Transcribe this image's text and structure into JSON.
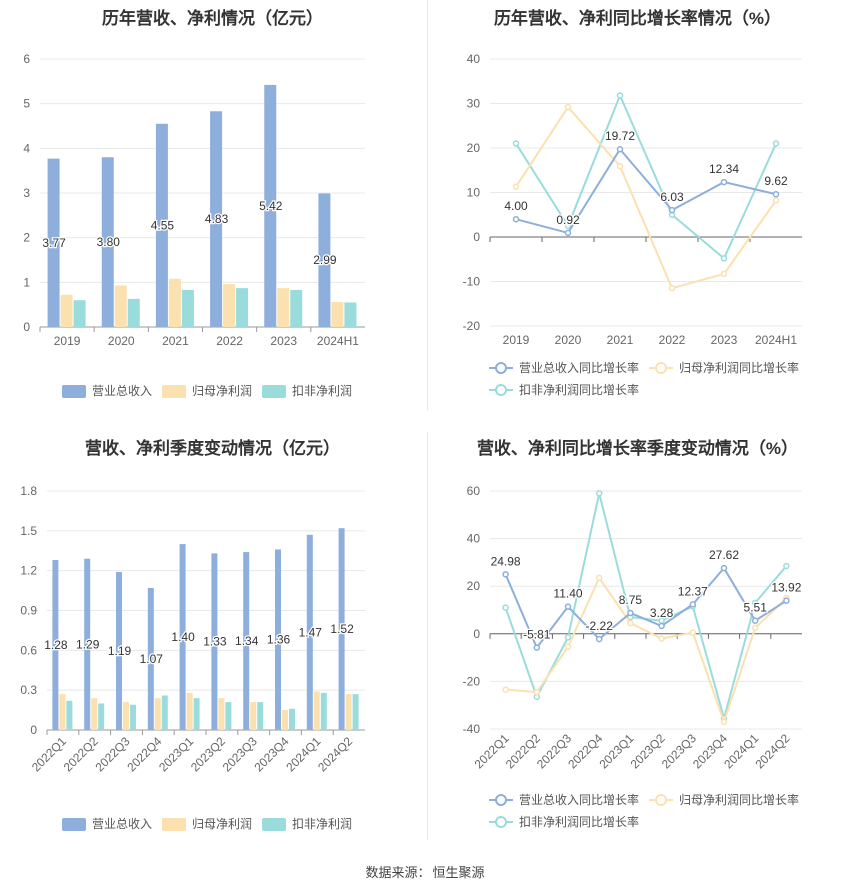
{
  "source": {
    "label": "数据来源：",
    "value": "恒生聚源"
  },
  "chart_data": [
    {
      "id": "annual-revenue-profit",
      "type": "bar",
      "title": "历年营收、净利情况（亿元）",
      "categories": [
        "2019",
        "2020",
        "2021",
        "2022",
        "2023",
        "2024H1"
      ],
      "ylim": [
        0,
        6
      ],
      "yticks": [
        0,
        1,
        2,
        3,
        4,
        5,
        6
      ],
      "series": [
        {
          "name": "营业总收入",
          "color": "#8eaedb",
          "values": [
            3.77,
            3.8,
            4.55,
            4.83,
            5.42,
            2.99
          ],
          "labels": [
            "3.77",
            "3.80",
            "4.55",
            "4.83",
            "5.42",
            "2.99"
          ]
        },
        {
          "name": "归母净利润",
          "color": "#fbe0b0",
          "values": [
            0.72,
            0.93,
            1.08,
            0.96,
            0.87,
            0.56
          ]
        },
        {
          "name": "扣非净利润",
          "color": "#9adcdc",
          "values": [
            0.6,
            0.63,
            0.83,
            0.87,
            0.83,
            0.55
          ]
        }
      ],
      "grid": true,
      "legend": "bottom"
    },
    {
      "id": "annual-yoy-growth",
      "type": "line",
      "title": "历年营收、净利同比增长率情况（%）",
      "categories": [
        "2019",
        "2020",
        "2021",
        "2022",
        "2023",
        "2024H1"
      ],
      "ylim": [
        -20,
        40
      ],
      "yticks": [
        -20,
        -10,
        0,
        10,
        20,
        30,
        40
      ],
      "series": [
        {
          "name": "营业总收入同比增长率",
          "color": "#8eaedb",
          "values": [
            4.0,
            0.92,
            19.72,
            6.03,
            12.34,
            9.62
          ],
          "labels": [
            "4.00",
            "0.92",
            "19.72",
            "6.03",
            "12.34",
            "9.62"
          ]
        },
        {
          "name": "归母净利润同比增长率",
          "color": "#fbe0b0",
          "values": [
            11.3,
            29.2,
            15.9,
            -11.5,
            -8.3,
            8.2
          ]
        },
        {
          "name": "扣非净利润同比增长率",
          "color": "#9adcdc",
          "values": [
            21.0,
            2.5,
            31.8,
            5.0,
            -4.8,
            21.0
          ]
        }
      ],
      "grid": true,
      "legend": "bottom"
    },
    {
      "id": "quarterly-revenue-profit",
      "type": "bar",
      "title": "营收、净利季度变动情况（亿元）",
      "categories": [
        "2022Q1",
        "2022Q2",
        "2022Q3",
        "2022Q4",
        "2023Q1",
        "2023Q2",
        "2023Q3",
        "2023Q4",
        "2024Q1",
        "2024Q2"
      ],
      "ylim": [
        0,
        1.8
      ],
      "yticks": [
        "0",
        "0.3",
        "0.6",
        "0.9",
        "1.2",
        "1.5",
        "1.8"
      ],
      "series": [
        {
          "name": "营业总收入",
          "color": "#8eaedb",
          "values": [
            1.28,
            1.29,
            1.19,
            1.07,
            1.4,
            1.33,
            1.34,
            1.36,
            1.47,
            1.52
          ],
          "labels": [
            "1.28",
            "1.29",
            "1.19",
            "1.07",
            "1.40",
            "1.33",
            "1.34",
            "1.36",
            "1.47",
            "1.52"
          ]
        },
        {
          "name": "归母净利润",
          "color": "#fbe0b0",
          "values": [
            0.27,
            0.24,
            0.21,
            0.24,
            0.28,
            0.24,
            0.21,
            0.15,
            0.29,
            0.27
          ]
        },
        {
          "name": "扣非净利润",
          "color": "#9adcdc",
          "values": [
            0.22,
            0.2,
            0.19,
            0.26,
            0.24,
            0.21,
            0.21,
            0.16,
            0.28,
            0.27
          ]
        }
      ],
      "grid": true,
      "legend": "bottom"
    },
    {
      "id": "quarterly-yoy-growth",
      "type": "line",
      "title": "营收、净利同比增长率季度变动情况（%）",
      "categories": [
        "2022Q1",
        "2022Q2",
        "2022Q3",
        "2022Q4",
        "2023Q1",
        "2023Q2",
        "2023Q3",
        "2023Q4",
        "2024Q1",
        "2024Q2"
      ],
      "ylim": [
        -40,
        60
      ],
      "yticks": [
        -40,
        -20,
        0,
        20,
        40,
        60
      ],
      "series": [
        {
          "name": "营业总收入同比增长率",
          "color": "#8eaedb",
          "values": [
            24.98,
            -5.81,
            11.4,
            -2.22,
            8.75,
            3.28,
            12.37,
            27.62,
            5.51,
            13.92
          ],
          "labels": [
            "24.98",
            "-5.81",
            "11.40",
            "-2.22",
            "8.75",
            "3.28",
            "12.37",
            "27.62",
            "5.51",
            "13.92"
          ]
        },
        {
          "name": "归母净利润同比增长率",
          "color": "#fbe0b0",
          "values": [
            -23.5,
            -24.5,
            -5.5,
            23.5,
            4.5,
            -2.0,
            0.5,
            -37.0,
            2.5,
            15.0
          ]
        },
        {
          "name": "扣非净利润同比增长率",
          "color": "#9adcdc",
          "values": [
            11.0,
            -26.5,
            -1.5,
            59.0,
            7.0,
            5.5,
            11.5,
            -35.5,
            13.0,
            28.5
          ]
        }
      ],
      "grid": true,
      "legend": "bottom"
    }
  ]
}
